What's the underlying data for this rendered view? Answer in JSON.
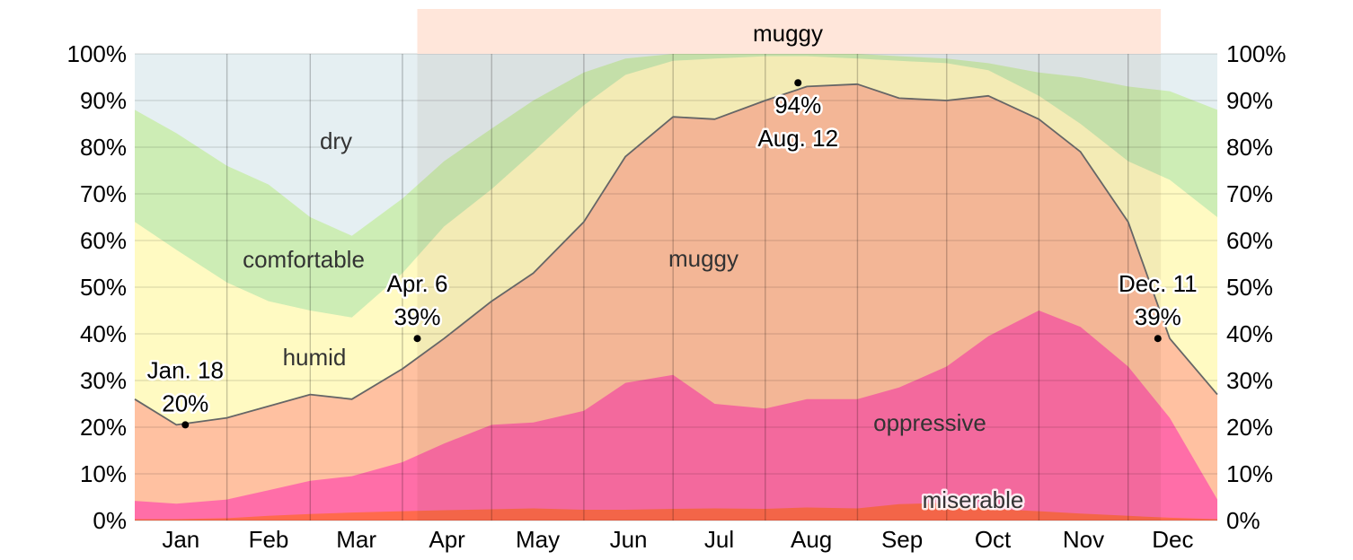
{
  "chart_data": {
    "type": "area",
    "stacked": true,
    "title": "",
    "xlabel": "",
    "ylabel": "",
    "ylim": [
      0,
      100
    ],
    "y_ticks": [
      "0%",
      "10%",
      "20%",
      "30%",
      "40%",
      "50%",
      "60%",
      "70%",
      "80%",
      "90%",
      "100%"
    ],
    "x_categories": [
      "Jan",
      "Feb",
      "Mar",
      "Apr",
      "May",
      "Jun",
      "Jul",
      "Aug",
      "Sep",
      "Oct",
      "Nov",
      "Dec"
    ],
    "grid": true,
    "y_axis_both_sides": true,
    "x_days": [
      1,
      15,
      32,
      46,
      60,
      74,
      91,
      105,
      121,
      135,
      152,
      166,
      182,
      196,
      213,
      227,
      244,
      258,
      274,
      288,
      305,
      319,
      335,
      349,
      365
    ],
    "series": [
      {
        "name": "miserable",
        "color": "#ff6a4d",
        "values": [
          0.3,
          0.3,
          0.5,
          1.0,
          1.4,
          1.7,
          2.0,
          2.2,
          2.4,
          2.6,
          2.3,
          2.3,
          2.5,
          2.6,
          2.5,
          2.8,
          2.6,
          3.5,
          3.8,
          2.5,
          2.0,
          1.5,
          1.0,
          0.6,
          0.3
        ]
      },
      {
        "name": "oppressive",
        "color": "#ff6ea8",
        "values": [
          4.2,
          3.6,
          4.5,
          6.5,
          8.5,
          9.5,
          12.5,
          16.5,
          20.5,
          21.0,
          23.5,
          29.5,
          31.2,
          25.0,
          24.0,
          26.0,
          26.0,
          28.5,
          33.0,
          39.5,
          45.0,
          41.5,
          33.0,
          22.0,
          4.5
        ]
      },
      {
        "name": "muggy",
        "color": "#ffc1a1",
        "values": [
          26.0,
          20.5,
          22.0,
          24.5,
          27.0,
          26.0,
          32.5,
          39.0,
          47.0,
          53.0,
          64.0,
          78.0,
          86.5,
          86.0,
          90.0,
          93.0,
          93.5,
          90.5,
          90.0,
          91.0,
          86.0,
          79.0,
          64.0,
          39.0,
          27.0
        ]
      },
      {
        "name": "humid",
        "color": "#fffac2",
        "values": [
          64.0,
          58.0,
          51.0,
          47.0,
          45.0,
          43.5,
          53.0,
          63.0,
          71.0,
          79.0,
          89.0,
          95.5,
          98.5,
          99.0,
          99.5,
          99.5,
          99.0,
          98.5,
          98.0,
          96.5,
          91.0,
          85.0,
          77.0,
          73.0,
          65.0
        ]
      },
      {
        "name": "comfortable",
        "color": "#cdedb5",
        "values": [
          88.0,
          83.0,
          76.0,
          72.0,
          65.0,
          61.0,
          69.0,
          77.0,
          84.0,
          90.0,
          96.0,
          99.0,
          100.0,
          100.0,
          100.0,
          100.0,
          100.0,
          99.5,
          99.0,
          98.0,
          96.0,
          95.0,
          93.0,
          92.0,
          88.0
        ]
      }
    ],
    "dry_color": "#e5eff2",
    "muggy_period": {
      "label": "muggy",
      "start_day": 96,
      "end_day": 346
    },
    "region_labels": {
      "dry": "dry",
      "comfortable": "comfortable",
      "humid": "humid",
      "muggy": "muggy",
      "oppressive": "oppressive",
      "miserable": "miserable"
    },
    "annotations": [
      {
        "date": "Jan. 18",
        "value_label": "20%",
        "day": 18,
        "value": 20.5
      },
      {
        "date": "Apr. 6",
        "value_label": "39%",
        "day": 96,
        "value": 39
      },
      {
        "date": "Aug. 12",
        "value_label": "94%",
        "day": 224,
        "value": 93.8
      },
      {
        "date": "Dec. 11",
        "value_label": "39%",
        "day": 345,
        "value": 39
      }
    ]
  }
}
